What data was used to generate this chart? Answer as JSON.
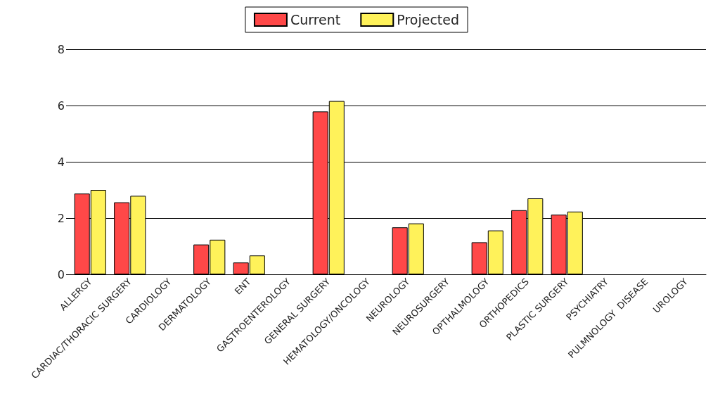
{
  "chart_data": {
    "type": "bar",
    "categories": [
      "ALLERGY",
      "CARDIAC/THORACIC SURGERY",
      "CARDIOLOGY",
      "DERMATOLOGY",
      "ENT",
      "GASTROENTEROLOGY",
      "GENERAL SURGERY",
      "HEMATOLOGY/ONCOLOGY",
      "NEUROLOGY",
      "NEUROSURGERY",
      "OPTHALMOLOGY",
      "ORTHOPEDICS",
      "PLASTIC SURGERY",
      "PSYCHIATRY",
      "PULMNOLOGY  DISEASE",
      "UROLOGY"
    ],
    "series": [
      {
        "name": "Current",
        "color": "#ff4848",
        "values": [
          2.87,
          2.56,
          0,
          1.06,
          0.42,
          0,
          5.79,
          0,
          1.67,
          0,
          1.14,
          2.28,
          2.12,
          0,
          0,
          0
        ]
      },
      {
        "name": "Projected",
        "color": "#fff25a",
        "values": [
          3.0,
          2.79,
          0,
          1.23,
          0.67,
          0,
          6.16,
          0,
          1.81,
          0,
          1.56,
          2.7,
          2.23,
          0,
          0,
          0
        ]
      }
    ],
    "ylim": [
      0,
      8
    ],
    "yticks": [
      0,
      2,
      4,
      6,
      8
    ],
    "grid": "y",
    "legend": "top"
  }
}
